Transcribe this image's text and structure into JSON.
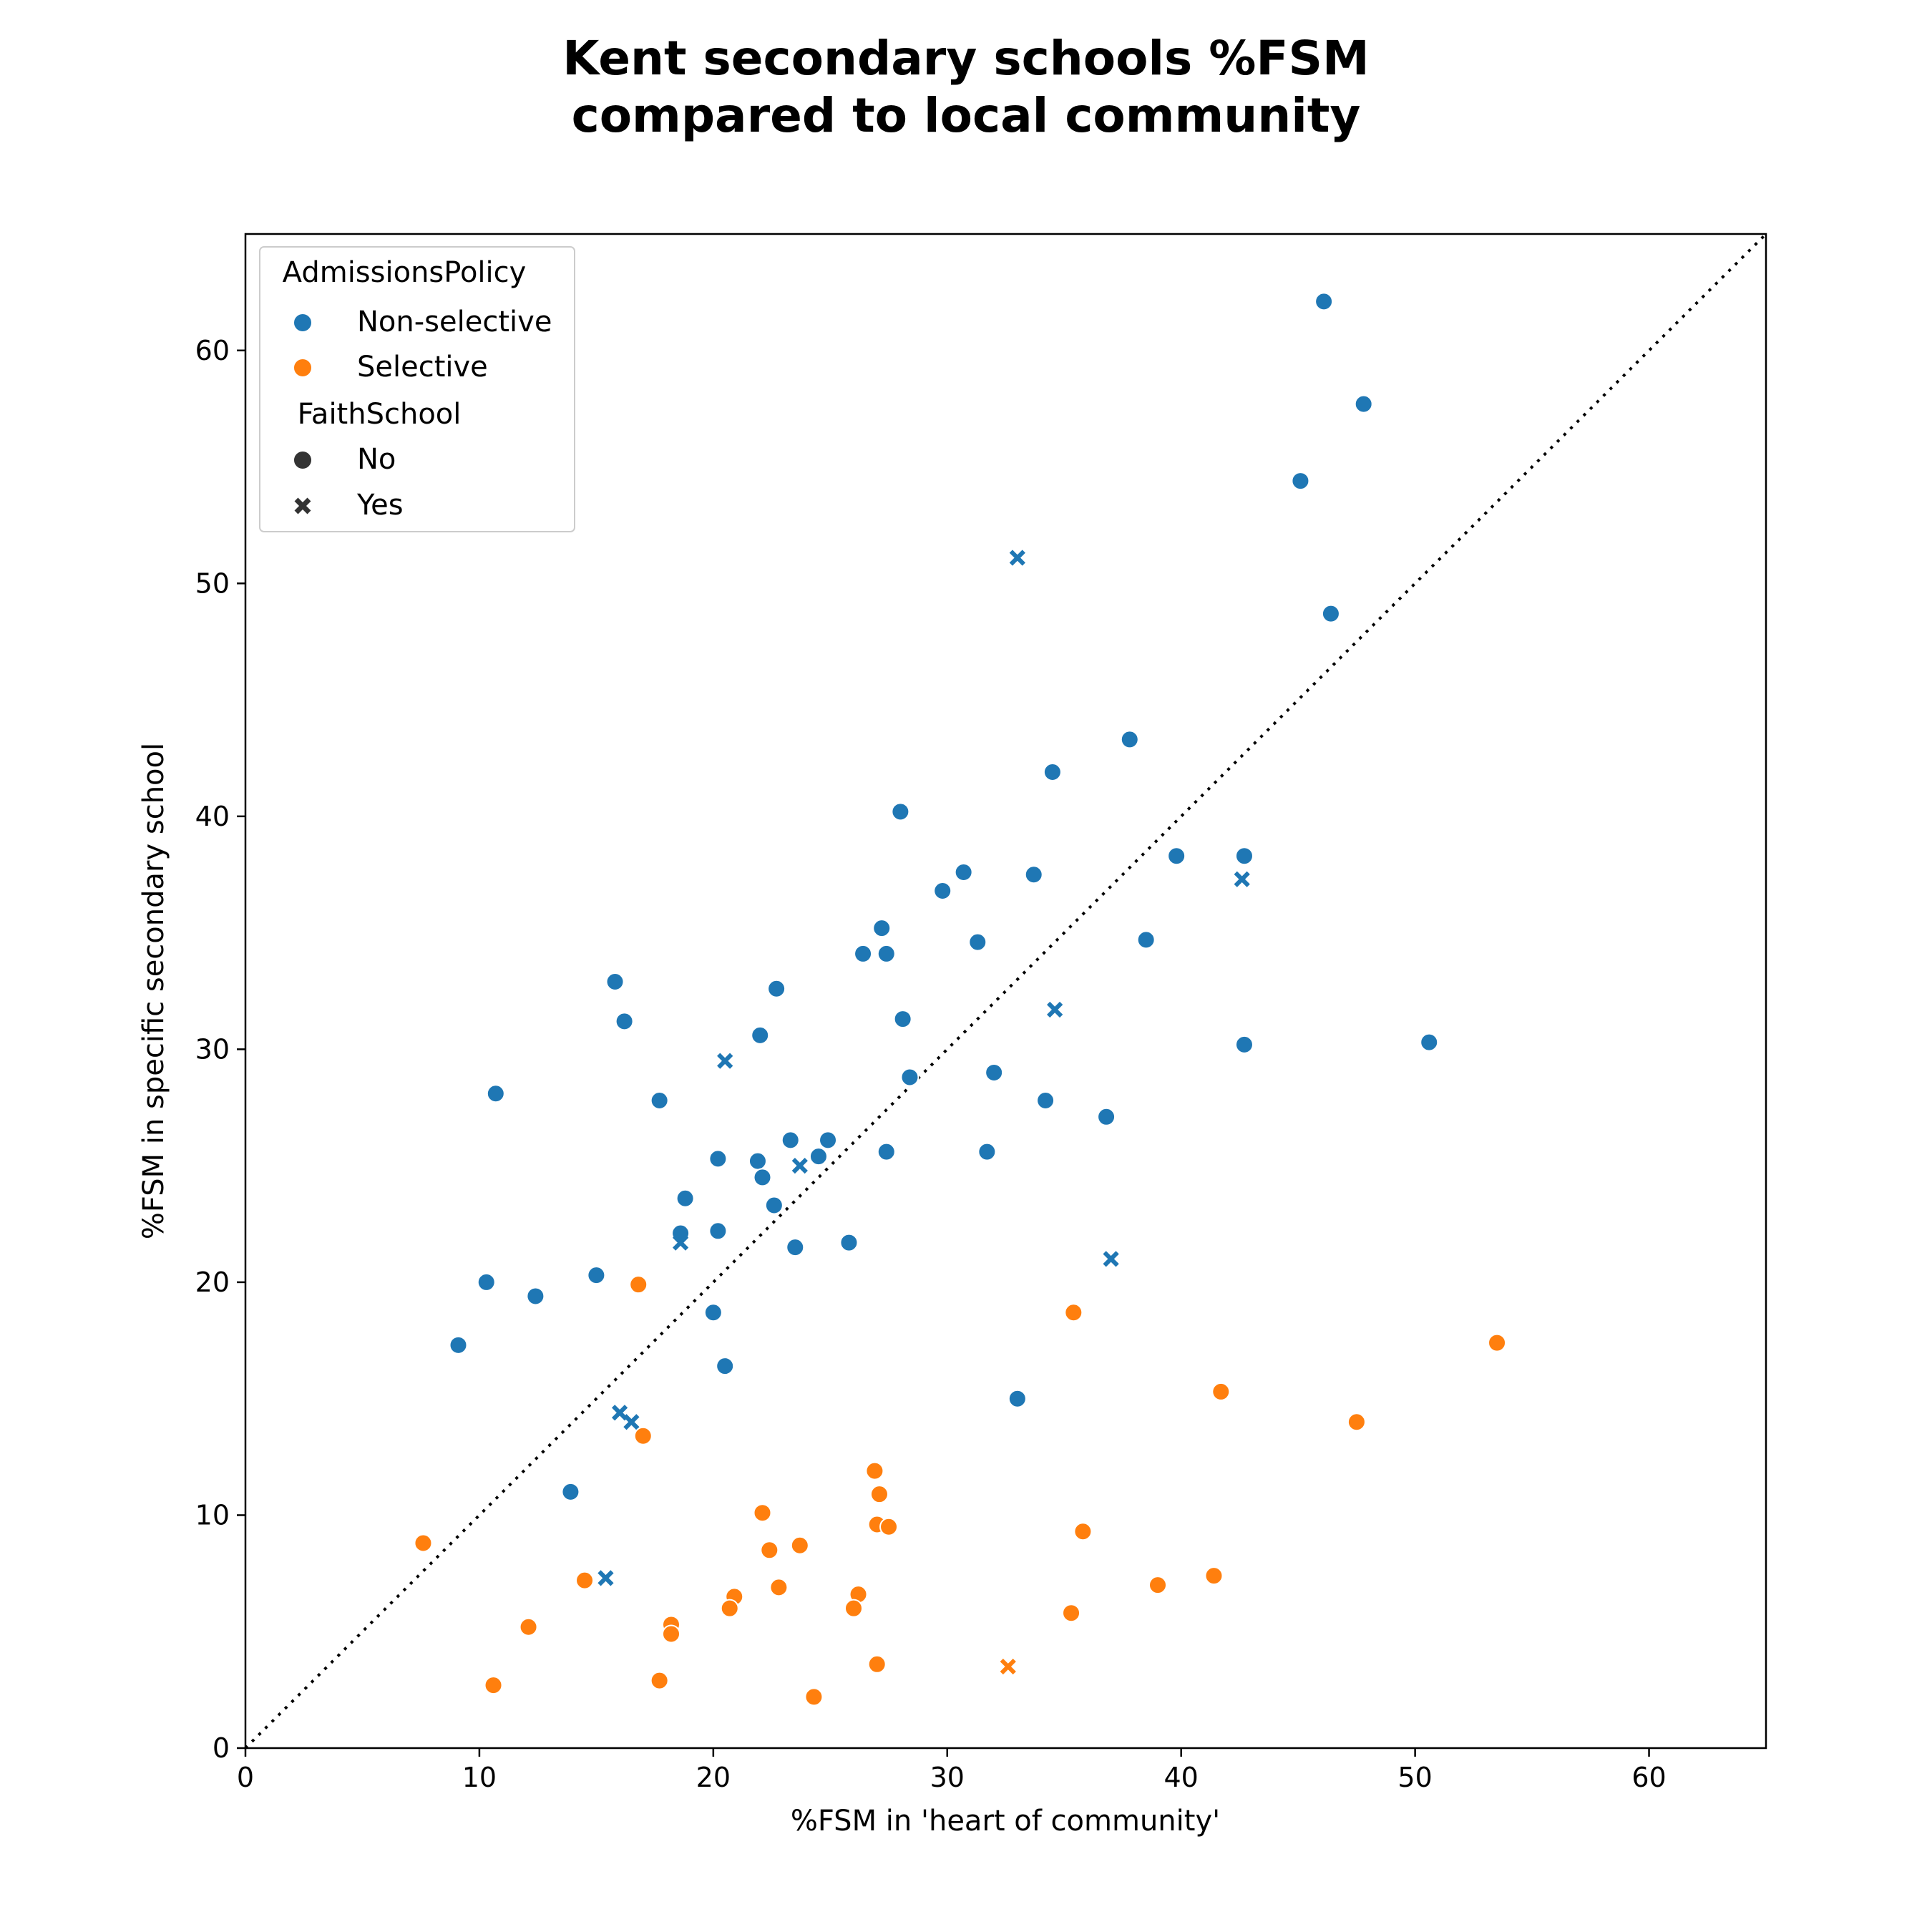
{
  "chart_data": {
    "type": "scatter",
    "title_lines": [
      "Kent secondary schools %FSM",
      "compared to local community"
    ],
    "xlabel": "%FSM in 'heart of community'",
    "ylabel": "%FSM in specific secondary school",
    "xlim": [
      0,
      65
    ],
    "ylim": [
      0,
      65
    ],
    "xticks": [
      0,
      10,
      20,
      30,
      40,
      50,
      60
    ],
    "yticks": [
      0,
      10,
      20,
      30,
      40,
      50,
      60
    ],
    "reference_line": {
      "type": "y=x",
      "style": "dotted",
      "color": "#000000"
    },
    "colors": {
      "Non-selective": "#1f77b4",
      "Selective": "#ff7f0e"
    },
    "legend": {
      "placement": "top-left",
      "hue_title": "AdmissionsPolicy",
      "hue_entries": [
        "Non-selective",
        "Selective"
      ],
      "style_title": "FaithSchool",
      "style_entries": [
        {
          "label": "No",
          "marker": "circle"
        },
        {
          "label": "Yes",
          "marker": "x"
        }
      ]
    },
    "series": [
      {
        "name": "Non-selective",
        "faith": "No",
        "points": [
          [
            46.1,
            62.1
          ],
          [
            47.8,
            57.7
          ],
          [
            45.1,
            54.4
          ],
          [
            46.4,
            48.7
          ],
          [
            37.8,
            43.3
          ],
          [
            34.5,
            41.9
          ],
          [
            28.0,
            40.2
          ],
          [
            39.8,
            38.3
          ],
          [
            42.7,
            38.3
          ],
          [
            30.7,
            37.6
          ],
          [
            33.7,
            37.5
          ],
          [
            29.8,
            36.8
          ],
          [
            27.2,
            35.2
          ],
          [
            38.5,
            34.7
          ],
          [
            31.3,
            34.6
          ],
          [
            26.4,
            34.1
          ],
          [
            27.4,
            34.1
          ],
          [
            15.8,
            32.9
          ],
          [
            22.7,
            32.6
          ],
          [
            16.2,
            31.2
          ],
          [
            28.1,
            31.3
          ],
          [
            22.0,
            30.6
          ],
          [
            50.6,
            30.3
          ],
          [
            42.7,
            30.2
          ],
          [
            32.0,
            29.0
          ],
          [
            28.4,
            28.8
          ],
          [
            10.7,
            28.1
          ],
          [
            17.7,
            27.8
          ],
          [
            34.2,
            27.8
          ],
          [
            36.8,
            27.1
          ],
          [
            23.3,
            26.1
          ],
          [
            24.9,
            26.1
          ],
          [
            27.4,
            25.6
          ],
          [
            31.7,
            25.6
          ],
          [
            24.5,
            25.4
          ],
          [
            20.2,
            25.3
          ],
          [
            21.9,
            25.2
          ],
          [
            22.1,
            24.5
          ],
          [
            18.8,
            23.6
          ],
          [
            22.6,
            23.3
          ],
          [
            18.6,
            22.1
          ],
          [
            20.2,
            22.2
          ],
          [
            23.5,
            21.5
          ],
          [
            25.8,
            21.7
          ],
          [
            15.0,
            20.3
          ],
          [
            10.3,
            20.0
          ],
          [
            12.4,
            19.4
          ],
          [
            20.0,
            18.7
          ],
          [
            9.1,
            17.3
          ],
          [
            20.5,
            16.4
          ],
          [
            33.0,
            15.0
          ],
          [
            13.9,
            11.0
          ]
        ]
      },
      {
        "name": "Non-selective",
        "faith": "Yes",
        "points": [
          [
            33.0,
            51.1
          ],
          [
            42.6,
            37.3
          ],
          [
            34.6,
            31.7
          ],
          [
            20.5,
            29.5
          ],
          [
            23.7,
            25.0
          ],
          [
            18.6,
            21.7
          ],
          [
            37.0,
            21.0
          ],
          [
            16.0,
            14.4
          ],
          [
            16.5,
            14.0
          ],
          [
            15.4,
            7.3
          ]
        ]
      },
      {
        "name": "Selective",
        "faith": "No",
        "points": [
          [
            16.8,
            19.9
          ],
          [
            35.4,
            18.7
          ],
          [
            53.5,
            17.4
          ],
          [
            41.7,
            15.3
          ],
          [
            47.5,
            14.0
          ],
          [
            17.0,
            13.4
          ],
          [
            26.9,
            11.9
          ],
          [
            27.1,
            10.9
          ],
          [
            22.1,
            10.1
          ],
          [
            27.0,
            9.6
          ],
          [
            27.5,
            9.5
          ],
          [
            35.8,
            9.3
          ],
          [
            7.6,
            8.8
          ],
          [
            23.7,
            8.7
          ],
          [
            22.4,
            8.5
          ],
          [
            14.5,
            7.2
          ],
          [
            41.4,
            7.4
          ],
          [
            39.0,
            7.0
          ],
          [
            22.8,
            6.9
          ],
          [
            26.2,
            6.6
          ],
          [
            20.9,
            6.5
          ],
          [
            20.7,
            6.0
          ],
          [
            26.0,
            6.0
          ],
          [
            35.3,
            5.8
          ],
          [
            12.1,
            5.2
          ],
          [
            18.2,
            5.3
          ],
          [
            18.2,
            4.9
          ],
          [
            27.0,
            3.6
          ],
          [
            17.7,
            2.9
          ],
          [
            10.6,
            2.7
          ],
          [
            24.3,
            2.2
          ]
        ]
      },
      {
        "name": "Selective",
        "faith": "Yes",
        "points": [
          [
            32.6,
            3.5
          ]
        ]
      }
    ]
  }
}
